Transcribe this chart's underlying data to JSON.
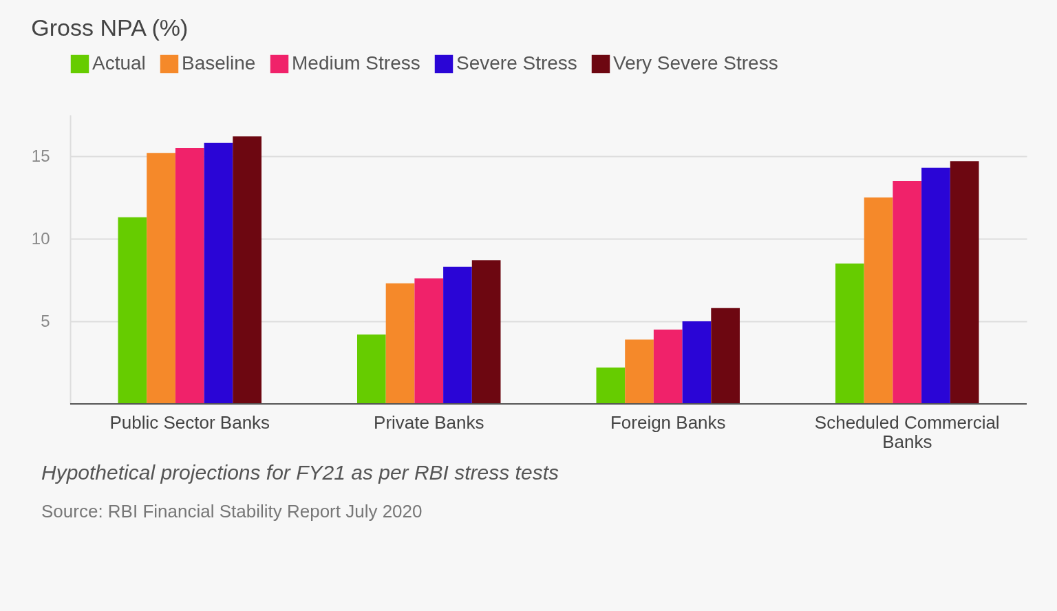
{
  "chart_data": {
    "type": "bar",
    "title": "Gross NPA (%)",
    "categories": [
      "Public Sector Banks",
      "Private Banks",
      "Foreign Banks",
      "Scheduled Commercial Banks"
    ],
    "series": [
      {
        "name": "Actual",
        "color": "#66cc00",
        "values": [
          11.3,
          4.2,
          2.2,
          8.5
        ]
      },
      {
        "name": "Baseline",
        "color": "#f5892a",
        "values": [
          15.2,
          7.3,
          3.9,
          12.5
        ]
      },
      {
        "name": "Medium Stress",
        "color": "#f0226a",
        "values": [
          15.5,
          7.6,
          4.5,
          13.5
        ]
      },
      {
        "name": "Severe Stress",
        "color": "#2a05d6",
        "values": [
          15.8,
          8.3,
          5.0,
          14.3
        ]
      },
      {
        "name": "Very Severe Stress",
        "color": "#6d0711",
        "values": [
          16.2,
          8.7,
          5.8,
          14.7
        ]
      }
    ],
    "ylim": [
      0,
      17.5
    ],
    "yticks": [
      5,
      10,
      15
    ],
    "grid": "y",
    "legend": "top left",
    "annotations": [
      "Hypothetical projections for FY21 as per RBI stress tests",
      "Source: RBI Financial Stability Report July 2020"
    ]
  }
}
